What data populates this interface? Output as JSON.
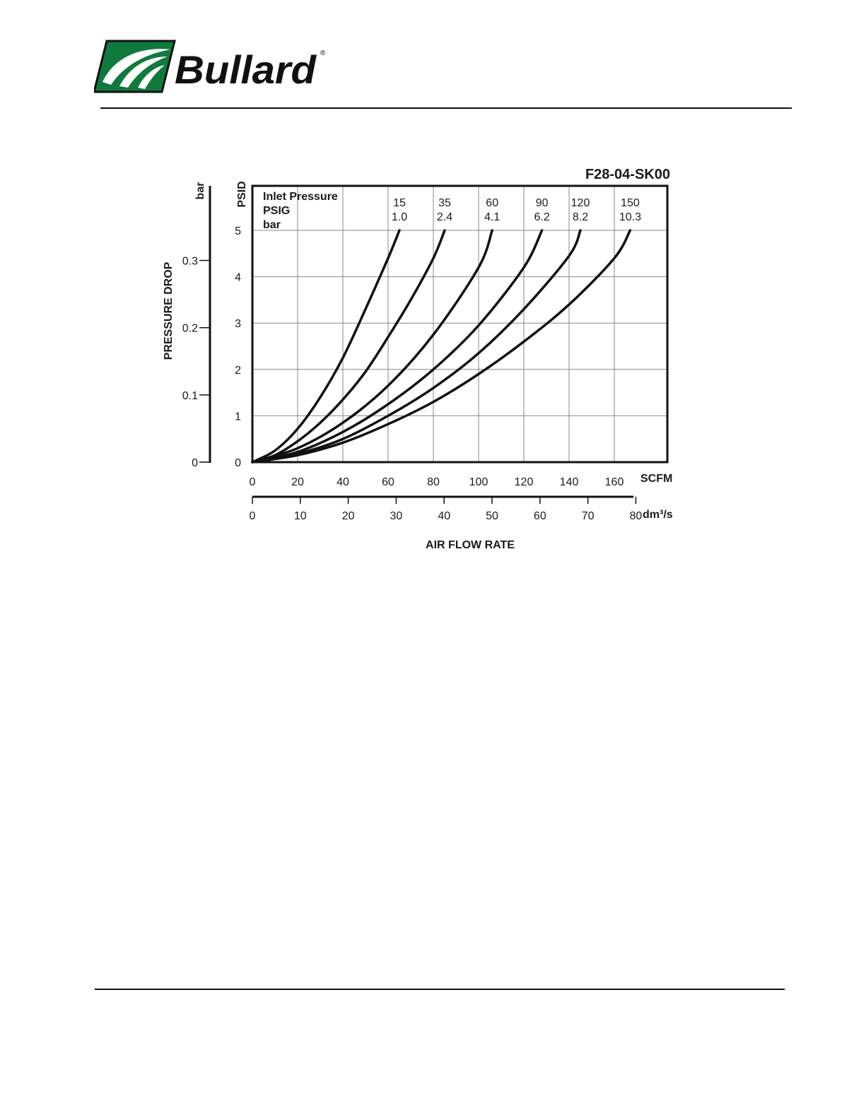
{
  "header": {
    "logo_text": "Bullard",
    "registered_mark": "®"
  },
  "chart_data": {
    "type": "line",
    "title": "F28-04-SK00",
    "xlabel": "AIR FLOW RATE",
    "x_unit_primary": "SCFM",
    "x_unit_secondary": "dm³/s",
    "ylabel": "PRESSURE DROP",
    "y_unit_primary": "PSID",
    "y_unit_secondary": "bar",
    "xlim": [
      0,
      185
    ],
    "ylim": [
      0,
      5.2
    ],
    "x_ticks": [
      0,
      20,
      40,
      60,
      80,
      100,
      120,
      140,
      160
    ],
    "y_ticks": [
      0,
      1,
      2,
      3,
      4,
      5
    ],
    "x2_ticks": [
      0,
      10,
      20,
      30,
      40,
      50,
      60,
      70,
      80
    ],
    "y2_ticks": [
      0,
      0.1,
      0.2,
      0.3
    ],
    "grid": true,
    "legend_header": [
      "Inlet Pressure",
      "PSIG",
      "bar"
    ],
    "series": [
      {
        "psig": "15",
        "bar": "1.0",
        "x": [
          0,
          10,
          20,
          30,
          40,
          50,
          60,
          65
        ],
        "y": [
          0,
          0.25,
          0.72,
          1.4,
          2.25,
          3.3,
          4.4,
          5.0
        ]
      },
      {
        "psig": "35",
        "bar": "2.4",
        "x": [
          0,
          10,
          20,
          30,
          40,
          50,
          60,
          70,
          80,
          85
        ],
        "y": [
          0,
          0.15,
          0.45,
          0.85,
          1.35,
          1.95,
          2.7,
          3.5,
          4.4,
          5.0
        ]
      },
      {
        "psig": "60",
        "bar": "4.1",
        "x": [
          0,
          20,
          40,
          60,
          80,
          100,
          106
        ],
        "y": [
          0,
          0.3,
          0.85,
          1.65,
          2.75,
          4.2,
          5.0
        ]
      },
      {
        "psig": "90",
        "bar": "6.2",
        "x": [
          0,
          20,
          40,
          60,
          80,
          100,
          120,
          128
        ],
        "y": [
          0,
          0.22,
          0.65,
          1.25,
          2.0,
          2.95,
          4.2,
          5.0
        ]
      },
      {
        "psig": "120",
        "bar": "8.2",
        "x": [
          0,
          20,
          40,
          60,
          80,
          100,
          120,
          140,
          145
        ],
        "y": [
          0,
          0.18,
          0.5,
          1.0,
          1.6,
          2.35,
          3.3,
          4.45,
          5.0
        ]
      },
      {
        "psig": "150",
        "bar": "10.3",
        "x": [
          0,
          20,
          40,
          60,
          80,
          100,
          120,
          140,
          160,
          167
        ],
        "y": [
          0,
          0.15,
          0.42,
          0.82,
          1.3,
          1.9,
          2.6,
          3.4,
          4.4,
          5.0
        ]
      }
    ]
  }
}
